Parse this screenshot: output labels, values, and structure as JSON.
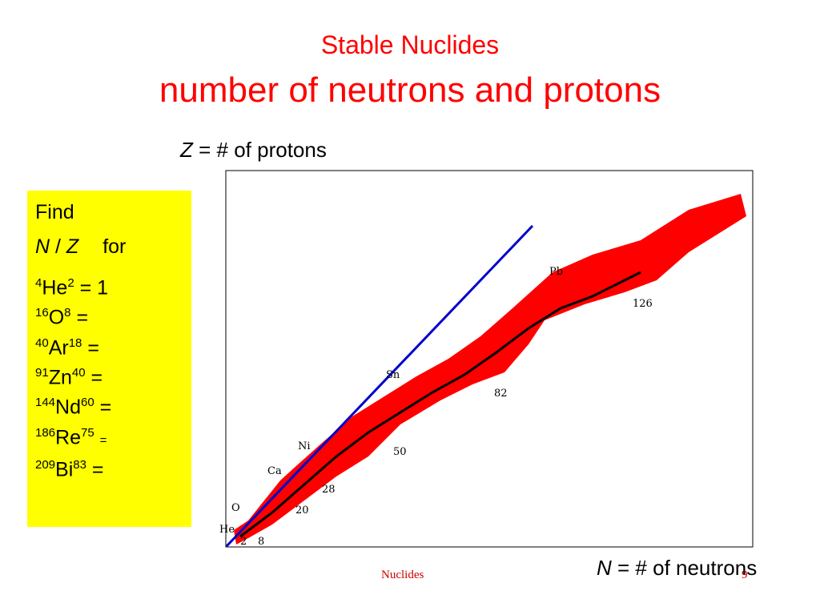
{
  "header": {
    "title": "Stable Nuclides",
    "subtitle": "number of neutrons and protons"
  },
  "z_axis": {
    "var": "Z",
    "text": "= # of protons"
  },
  "n_axis": {
    "var": "N",
    "text": "= # of neutrons"
  },
  "find_box": {
    "heading": "Find",
    "ratio": {
      "n": "N",
      "slash": "/",
      "z": "Z",
      "for": "for"
    },
    "items": [
      {
        "mass": "4",
        "symbol": "He",
        "z": "2",
        "rest": "= 1"
      },
      {
        "mass": "16",
        "symbol": "O",
        "z": "8",
        "rest": "="
      },
      {
        "mass": "40",
        "symbol": "Ar",
        "z": "18",
        "rest": "="
      },
      {
        "mass": "91",
        "symbol": "Zn",
        "z": "40",
        "rest": "="
      },
      {
        "mass": "144",
        "symbol": "Nd",
        "z": "60",
        "rest": "="
      },
      {
        "mass": "186",
        "symbol": "Re",
        "z": "75",
        "rest": "="
      },
      {
        "mass": "209",
        "symbol": "Bi",
        "z": "83",
        "rest": "="
      }
    ]
  },
  "chart": {
    "elements": [
      "He",
      "O",
      "Ca",
      "Ni",
      "Sn",
      "Pb"
    ],
    "magic": [
      "2",
      "8",
      "20",
      "28",
      "50",
      "82",
      "126"
    ]
  },
  "footer": {
    "text": "Nuclides",
    "page": "9"
  }
}
